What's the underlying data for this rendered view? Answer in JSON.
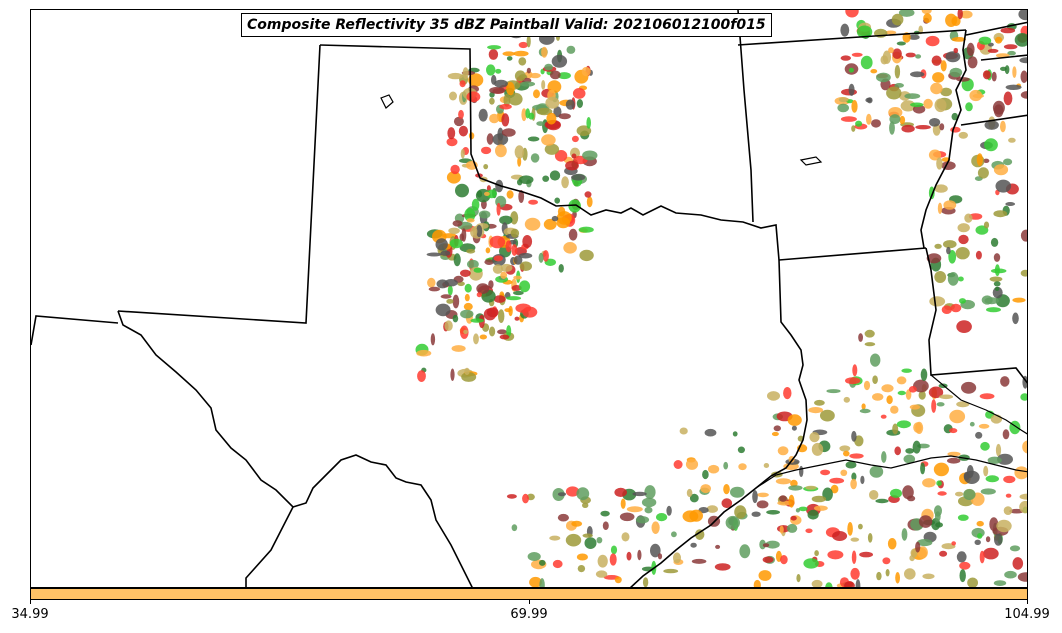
{
  "title": "Composite Reflectivity 35 dBZ Paintball Valid: 202106012100f015",
  "colorbar": {
    "color": "#ffc266",
    "ticks": [
      "34.99",
      "69.99",
      "104.99"
    ]
  },
  "member_colors": [
    "#ff3b30",
    "#ff9900",
    "#ffae42",
    "#33cc33",
    "#2e7d32",
    "#8b3a3a",
    "#555555",
    "#9e9a3a",
    "#c8b060",
    "#5f9e5f",
    "#cc2222"
  ]
}
